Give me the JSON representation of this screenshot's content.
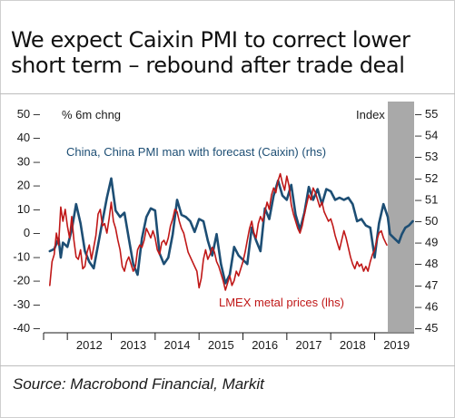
{
  "title_lines": [
    "We expect Caixin PMI to correct lower",
    "short term – rebound after trade deal"
  ],
  "source": "Source: Macrobond Financial, Markit",
  "chart_data": {
    "type": "line",
    "left_axis": {
      "unit_label": "% 6m chng",
      "ticks": [
        50,
        40,
        30,
        20,
        10,
        0,
        -10,
        -20,
        -30,
        -40
      ],
      "tick_labels": [
        "50 –",
        "40 –",
        "30 –",
        "20 –",
        "10 –",
        "0 –",
        "-10 –",
        "-20 –",
        "-30 –",
        "-40 –"
      ],
      "ylim": [
        -40,
        50
      ]
    },
    "right_axis": {
      "unit_label": "Index",
      "ticks": [
        55,
        54,
        53,
        52,
        51,
        50,
        49,
        48,
        47,
        46,
        45
      ],
      "tick_labels": [
        "– 55",
        "– 54",
        "– 53",
        "– 52",
        "– 51",
        "– 50",
        "– 49",
        "– 48",
        "– 47",
        "– 46",
        "– 45"
      ],
      "ylim": [
        45,
        55
      ]
    },
    "x_labels": [
      "2012",
      "2013",
      "2014",
      "2015",
      "2016",
      "2017",
      "2018",
      "2019"
    ],
    "xlim": [
      2011.5,
      2019.9
    ],
    "forecast_shade_start": 2019.3,
    "colors": {
      "china": "#1d4e74",
      "lmex": "#c01818",
      "shade": "#a9a9a9"
    },
    "series": [
      {
        "name": "China, China PMI man with forecast (Caixin) (rhs)",
        "axis": "right",
        "points": [
          [
            2011.6,
            48.6
          ],
          [
            2011.7,
            48.7
          ],
          [
            2011.8,
            49.2
          ],
          [
            2011.85,
            48.3
          ],
          [
            2011.9,
            49.0
          ],
          [
            2012.0,
            48.8
          ],
          [
            2012.1,
            49.6
          ],
          [
            2012.2,
            50.8
          ],
          [
            2012.3,
            49.9
          ],
          [
            2012.4,
            48.6
          ],
          [
            2012.5,
            48.1
          ],
          [
            2012.6,
            47.8
          ],
          [
            2012.7,
            48.9
          ],
          [
            2012.8,
            50.0
          ],
          [
            2012.9,
            51.1
          ],
          [
            2013.0,
            52.0
          ],
          [
            2013.1,
            50.5
          ],
          [
            2013.2,
            50.2
          ],
          [
            2013.3,
            50.4
          ],
          [
            2013.4,
            49.2
          ],
          [
            2013.5,
            48.0
          ],
          [
            2013.6,
            47.5
          ],
          [
            2013.7,
            49.2
          ],
          [
            2013.8,
            50.2
          ],
          [
            2013.9,
            50.6
          ],
          [
            2014.0,
            50.5
          ],
          [
            2014.1,
            48.5
          ],
          [
            2014.2,
            48.0
          ],
          [
            2014.3,
            48.3
          ],
          [
            2014.4,
            49.4
          ],
          [
            2014.5,
            51.0
          ],
          [
            2014.6,
            50.3
          ],
          [
            2014.7,
            50.2
          ],
          [
            2014.8,
            50.0
          ],
          [
            2014.9,
            49.5
          ],
          [
            2015.0,
            50.1
          ],
          [
            2015.1,
            50.0
          ],
          [
            2015.2,
            49.1
          ],
          [
            2015.3,
            48.4
          ],
          [
            2015.4,
            49.4
          ],
          [
            2015.5,
            48.0
          ],
          [
            2015.6,
            47.1
          ],
          [
            2015.7,
            47.5
          ],
          [
            2015.8,
            48.8
          ],
          [
            2015.9,
            48.4
          ],
          [
            2016.0,
            48.2
          ],
          [
            2016.1,
            48.0
          ],
          [
            2016.2,
            49.7
          ],
          [
            2016.3,
            49.1
          ],
          [
            2016.4,
            48.6
          ],
          [
            2016.5,
            50.6
          ],
          [
            2016.6,
            50.1
          ],
          [
            2016.7,
            51.2
          ],
          [
            2016.8,
            51.9
          ],
          [
            2016.9,
            51.2
          ],
          [
            2017.0,
            51.0
          ],
          [
            2017.1,
            51.7
          ],
          [
            2017.2,
            50.3
          ],
          [
            2017.3,
            49.6
          ],
          [
            2017.4,
            50.4
          ],
          [
            2017.5,
            51.6
          ],
          [
            2017.6,
            51.0
          ],
          [
            2017.7,
            51.5
          ],
          [
            2017.8,
            50.8
          ],
          [
            2017.9,
            51.5
          ],
          [
            2018.0,
            51.4
          ],
          [
            2018.1,
            51.0
          ],
          [
            2018.2,
            51.1
          ],
          [
            2018.3,
            51.0
          ],
          [
            2018.4,
            51.1
          ],
          [
            2018.5,
            50.8
          ],
          [
            2018.6,
            50.0
          ],
          [
            2018.7,
            50.1
          ],
          [
            2018.8,
            49.8
          ],
          [
            2018.9,
            49.7
          ],
          [
            2019.0,
            48.3
          ],
          [
            2019.1,
            49.9
          ],
          [
            2019.2,
            50.8
          ],
          [
            2019.3,
            50.2
          ],
          [
            2019.35,
            49.4
          ],
          [
            2019.45,
            49.2
          ],
          [
            2019.55,
            49.0
          ],
          [
            2019.62,
            49.4
          ],
          [
            2019.7,
            49.7
          ],
          [
            2019.78,
            49.8
          ],
          [
            2019.87,
            50.0
          ]
        ]
      },
      {
        "name": "LMEX metal prices (lhs)",
        "axis": "left",
        "points": [
          [
            2011.6,
            -22
          ],
          [
            2011.65,
            -12
          ],
          [
            2011.7,
            -9
          ],
          [
            2011.75,
            0
          ],
          [
            2011.8,
            -5
          ],
          [
            2011.85,
            11
          ],
          [
            2011.9,
            5
          ],
          [
            2011.95,
            10
          ],
          [
            2012.0,
            3
          ],
          [
            2012.05,
            -2
          ],
          [
            2012.1,
            7
          ],
          [
            2012.15,
            -3
          ],
          [
            2012.2,
            -10
          ],
          [
            2012.25,
            -11
          ],
          [
            2012.3,
            -7
          ],
          [
            2012.35,
            -15
          ],
          [
            2012.4,
            -14
          ],
          [
            2012.45,
            -8
          ],
          [
            2012.5,
            -5
          ],
          [
            2012.55,
            -11
          ],
          [
            2012.6,
            -6
          ],
          [
            2012.65,
            -1
          ],
          [
            2012.7,
            8
          ],
          [
            2012.75,
            10
          ],
          [
            2012.8,
            3
          ],
          [
            2012.85,
            4
          ],
          [
            2012.9,
            0
          ],
          [
            2012.95,
            6
          ],
          [
            2013.0,
            13
          ],
          [
            2013.05,
            5
          ],
          [
            2013.1,
            2
          ],
          [
            2013.15,
            -3
          ],
          [
            2013.2,
            -7
          ],
          [
            2013.25,
            -14
          ],
          [
            2013.3,
            -16
          ],
          [
            2013.35,
            -12
          ],
          [
            2013.4,
            -10
          ],
          [
            2013.45,
            -13
          ],
          [
            2013.5,
            -16
          ],
          [
            2013.55,
            -14
          ],
          [
            2013.6,
            -7
          ],
          [
            2013.65,
            -5
          ],
          [
            2013.7,
            -6
          ],
          [
            2013.75,
            -3
          ],
          [
            2013.8,
            2
          ],
          [
            2013.85,
            0
          ],
          [
            2013.9,
            -2
          ],
          [
            2013.95,
            1
          ],
          [
            2014.0,
            -2
          ],
          [
            2014.05,
            -7
          ],
          [
            2014.1,
            -9
          ],
          [
            2014.15,
            -4
          ],
          [
            2014.2,
            -3
          ],
          [
            2014.25,
            -5
          ],
          [
            2014.3,
            -2
          ],
          [
            2014.35,
            3
          ],
          [
            2014.4,
            6
          ],
          [
            2014.45,
            10
          ],
          [
            2014.5,
            9
          ],
          [
            2014.55,
            5
          ],
          [
            2014.6,
            2
          ],
          [
            2014.65,
            0
          ],
          [
            2014.7,
            -4
          ],
          [
            2014.75,
            -8
          ],
          [
            2014.8,
            -10
          ],
          [
            2014.85,
            -12
          ],
          [
            2014.9,
            -14
          ],
          [
            2014.95,
            -16
          ],
          [
            2015.0,
            -23
          ],
          [
            2015.05,
            -19
          ],
          [
            2015.1,
            -11
          ],
          [
            2015.15,
            -7
          ],
          [
            2015.2,
            -11
          ],
          [
            2015.25,
            -9
          ],
          [
            2015.3,
            -6
          ],
          [
            2015.35,
            -8
          ],
          [
            2015.4,
            -12
          ],
          [
            2015.45,
            -14
          ],
          [
            2015.5,
            -17
          ],
          [
            2015.55,
            -20
          ],
          [
            2015.6,
            -24
          ],
          [
            2015.65,
            -21
          ],
          [
            2015.7,
            -18
          ],
          [
            2015.75,
            -22
          ],
          [
            2015.8,
            -20
          ],
          [
            2015.85,
            -16
          ],
          [
            2015.9,
            -18
          ],
          [
            2015.95,
            -15
          ],
          [
            2016.0,
            -12
          ],
          [
            2016.05,
            -8
          ],
          [
            2016.1,
            -3
          ],
          [
            2016.15,
            2
          ],
          [
            2016.2,
            5
          ],
          [
            2016.25,
            0
          ],
          [
            2016.3,
            -2
          ],
          [
            2016.35,
            4
          ],
          [
            2016.4,
            7
          ],
          [
            2016.45,
            5
          ],
          [
            2016.5,
            9
          ],
          [
            2016.55,
            13
          ],
          [
            2016.6,
            10
          ],
          [
            2016.65,
            16
          ],
          [
            2016.7,
            19
          ],
          [
            2016.75,
            17
          ],
          [
            2016.8,
            22
          ],
          [
            2016.85,
            25
          ],
          [
            2016.9,
            21
          ],
          [
            2016.95,
            18
          ],
          [
            2017.0,
            24
          ],
          [
            2017.05,
            20
          ],
          [
            2017.1,
            12
          ],
          [
            2017.15,
            8
          ],
          [
            2017.2,
            5
          ],
          [
            2017.25,
            2
          ],
          [
            2017.3,
            0
          ],
          [
            2017.35,
            3
          ],
          [
            2017.4,
            8
          ],
          [
            2017.45,
            12
          ],
          [
            2017.5,
            16
          ],
          [
            2017.55,
            14
          ],
          [
            2017.6,
            19
          ],
          [
            2017.65,
            17
          ],
          [
            2017.7,
            14
          ],
          [
            2017.75,
            11
          ],
          [
            2017.8,
            13
          ],
          [
            2017.85,
            9
          ],
          [
            2017.9,
            7
          ],
          [
            2017.95,
            5
          ],
          [
            2018.0,
            6
          ],
          [
            2018.05,
            3
          ],
          [
            2018.1,
            -1
          ],
          [
            2018.15,
            -4
          ],
          [
            2018.2,
            -7
          ],
          [
            2018.25,
            -3
          ],
          [
            2018.3,
            1
          ],
          [
            2018.35,
            -2
          ],
          [
            2018.4,
            -6
          ],
          [
            2018.45,
            -10
          ],
          [
            2018.5,
            -13
          ],
          [
            2018.55,
            -15
          ],
          [
            2018.6,
            -12
          ],
          [
            2018.65,
            -14
          ],
          [
            2018.7,
            -13
          ],
          [
            2018.75,
            -16
          ],
          [
            2018.8,
            -14
          ],
          [
            2018.85,
            -16
          ],
          [
            2018.9,
            -12
          ],
          [
            2018.95,
            -9
          ],
          [
            2019.0,
            -7
          ],
          [
            2019.05,
            -3
          ],
          [
            2019.1,
            0
          ],
          [
            2019.15,
            1
          ],
          [
            2019.2,
            -2
          ],
          [
            2019.25,
            -4
          ],
          [
            2019.28,
            -5
          ]
        ]
      }
    ],
    "annotations": [
      {
        "text": "China, China PMI man with forecast (Caixin) (rhs)",
        "color": "#1d4e74"
      },
      {
        "text": "LMEX metal prices (lhs)",
        "color": "#c01818"
      }
    ]
  }
}
